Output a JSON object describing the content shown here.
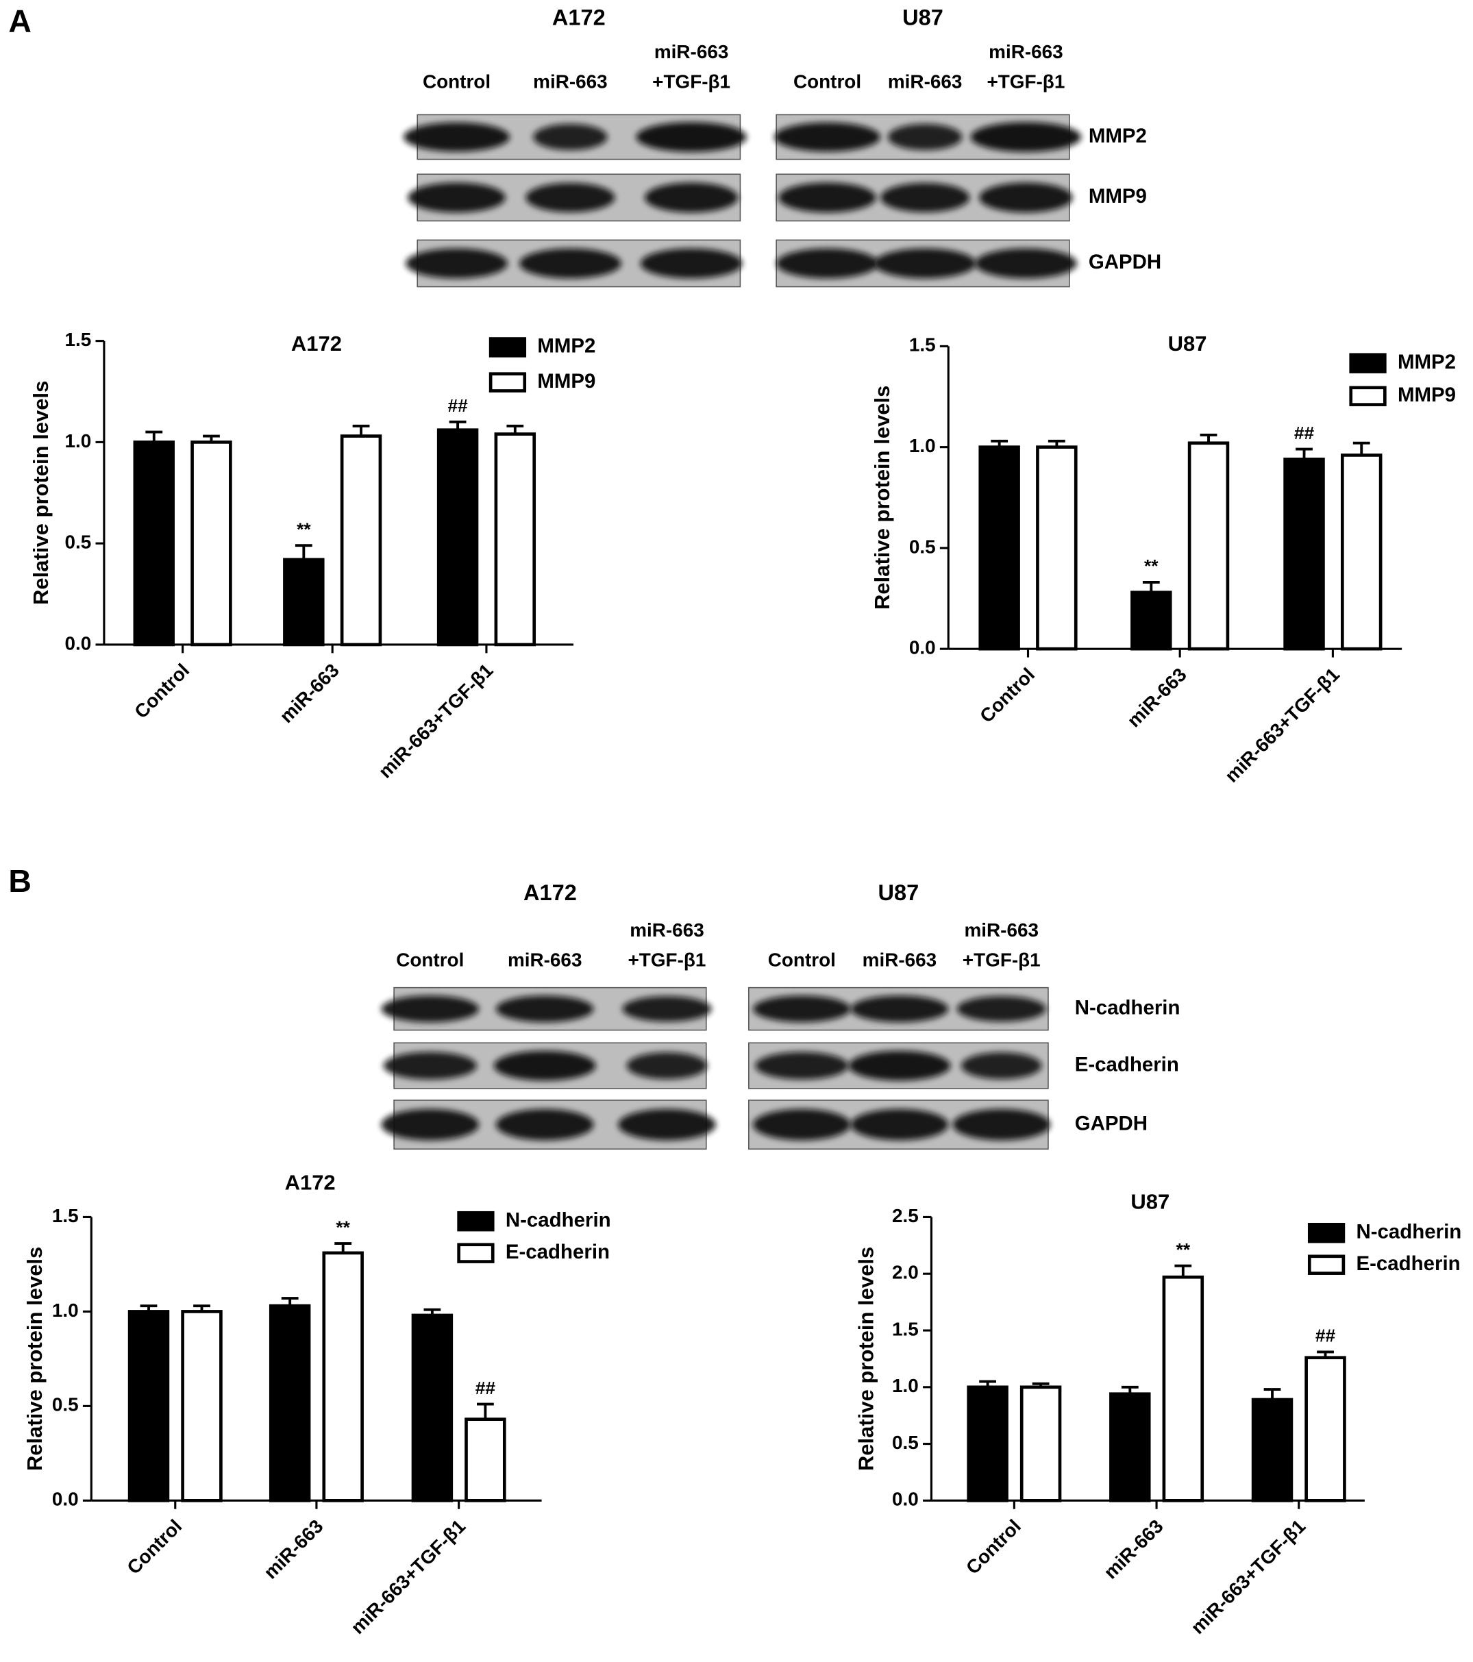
{
  "panels": [
    {
      "label": "A",
      "blots": [
        {
          "cell_line": "A172",
          "lanes": [
            [
              "Control"
            ],
            [
              "miR-663"
            ],
            [
              "miR-663",
              "+TGF-β1"
            ]
          ]
        },
        {
          "cell_line": "U87",
          "lanes": [
            [
              "Control"
            ],
            [
              "miR-663"
            ],
            [
              "miR-663",
              "+TGF-β1"
            ]
          ]
        }
      ],
      "rows": [
        "MMP2",
        "MMP9",
        "GAPDH"
      ]
    },
    {
      "label": "B",
      "blots": [
        {
          "cell_line": "A172",
          "lanes": [
            [
              "Control"
            ],
            [
              "miR-663"
            ],
            [
              "miR-663",
              "+TGF-β1"
            ]
          ]
        },
        {
          "cell_line": "U87",
          "lanes": [
            [
              "Control"
            ],
            [
              "miR-663"
            ],
            [
              "miR-663",
              "+TGF-β1"
            ]
          ]
        }
      ],
      "rows": [
        "N-cadherin",
        "E-cadherin",
        "GAPDH"
      ]
    }
  ],
  "chart_data": [
    {
      "type": "bar",
      "title": "A172",
      "y_label": "Relative protein levels",
      "categories": [
        "Control",
        "miR-663",
        "miR-663+TGF-β1"
      ],
      "series": [
        {
          "name": "MMP2",
          "color": "#000000",
          "values": [
            1.0,
            0.42,
            1.06
          ],
          "errors": [
            0.05,
            0.07,
            0.04
          ],
          "value_annotations": [
            null,
            "**",
            "##"
          ]
        },
        {
          "name": "MMP9",
          "color": "#ffffff",
          "values": [
            1.0,
            1.03,
            1.04
          ],
          "errors": [
            0.03,
            0.05,
            0.04
          ]
        }
      ],
      "ylim": [
        0,
        1.5
      ],
      "yticks": [
        {
          "value": 0,
          "label": "0.0"
        },
        0.5,
        {
          "value": 1,
          "label": "1.0"
        },
        1.5
      ]
    },
    {
      "type": "bar",
      "title": "U87",
      "y_label": "Relative protein levels",
      "categories": [
        "Control",
        "miR-663",
        "miR-663+TGF-β1"
      ],
      "series": [
        {
          "name": "MMP2",
          "color": "#000000",
          "values": [
            1.0,
            0.28,
            0.94
          ],
          "errors": [
            0.03,
            0.05,
            0.05
          ],
          "value_annotations": [
            null,
            "**",
            "##"
          ]
        },
        {
          "name": "MMP9",
          "color": "#ffffff",
          "values": [
            1.0,
            1.02,
            0.96
          ],
          "errors": [
            0.03,
            0.04,
            0.06
          ]
        }
      ],
      "ylim": [
        0,
        1.5
      ],
      "yticks": [
        {
          "value": 0,
          "label": "0.0"
        },
        0.5,
        {
          "value": 1,
          "label": "1.0"
        },
        1.5
      ]
    },
    {
      "type": "bar",
      "title": "A172",
      "y_label": "Relative protein levels",
      "categories": [
        "Control",
        "miR-663",
        "miR-663+TGF-β1"
      ],
      "series": [
        {
          "name": "N-cadherin",
          "color": "#000000",
          "values": [
            1.0,
            1.03,
            0.98
          ],
          "errors": [
            0.03,
            0.04,
            0.03
          ]
        },
        {
          "name": "E-cadherin",
          "color": "#ffffff",
          "values": [
            1.0,
            1.31,
            0.43
          ],
          "errors": [
            0.03,
            0.05,
            0.08
          ],
          "value_annotations": [
            null,
            "**",
            "##"
          ]
        }
      ],
      "ylim": [
        0,
        1.5
      ],
      "yticks": [
        {
          "value": 0,
          "label": "0.0"
        },
        0.5,
        {
          "value": 1,
          "label": "1.0"
        },
        1.5
      ]
    },
    {
      "type": "bar",
      "title": "U87",
      "y_label": "Relative protein levels",
      "categories": [
        "Control",
        "miR-663",
        "miR-663+TGF-β1"
      ],
      "series": [
        {
          "name": "N-cadherin",
          "color": "#000000",
          "values": [
            1.0,
            0.94,
            0.89
          ],
          "errors": [
            0.05,
            0.06,
            0.09
          ]
        },
        {
          "name": "E-cadherin",
          "color": "#ffffff",
          "values": [
            1.0,
            1.97,
            1.26
          ],
          "errors": [
            0.03,
            0.1,
            0.05
          ],
          "value_annotations": [
            null,
            "**",
            "##"
          ]
        }
      ],
      "ylim": [
        0,
        2.5
      ],
      "yticks": [
        {
          "value": 0,
          "label": "0.0"
        },
        0.5,
        {
          "value": 1,
          "label": "1.0"
        },
        1.5,
        {
          "value": 2,
          "label": "2.0"
        },
        2.5
      ]
    }
  ]
}
